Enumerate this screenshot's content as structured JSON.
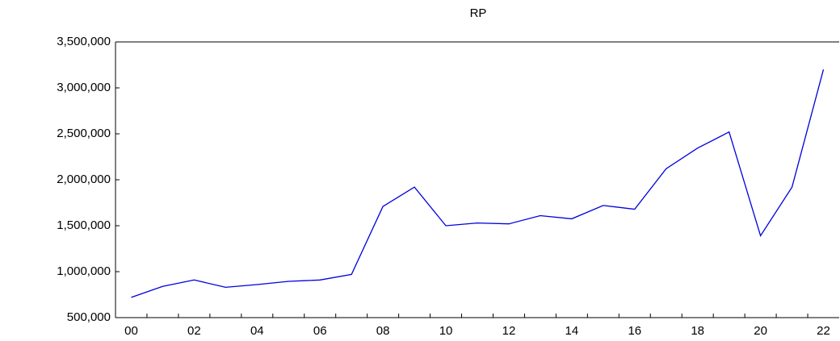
{
  "chart_data": {
    "type": "line",
    "title": "RP",
    "categories": [
      "00",
      null,
      "02",
      null,
      "04",
      null,
      "06",
      null,
      "08",
      null,
      "10",
      null,
      "12",
      null,
      "14",
      null,
      "16",
      null,
      "18",
      null,
      "20",
      null,
      "22"
    ],
    "series": [
      {
        "name": "RP",
        "color": "#0000dd",
        "values": [
          720000,
          840000,
          910000,
          830000,
          860000,
          895000,
          910000,
          970000,
          1710000,
          1920000,
          1500000,
          1530000,
          1520000,
          1610000,
          1575000,
          1720000,
          1680000,
          2120000,
          2345000,
          2520000,
          1390000,
          1920000,
          3200000
        ]
      }
    ],
    "ylim": [
      500000,
      3500000
    ],
    "yticks": [
      {
        "value": 500000,
        "label": "500,000"
      },
      {
        "value": 1000000,
        "label": "1,000,000"
      },
      {
        "value": 1500000,
        "label": "1,500,000"
      },
      {
        "value": 2000000,
        "label": "2,000,000"
      },
      {
        "value": 2500000,
        "label": "2,500,000"
      },
      {
        "value": 3000000,
        "label": "3,000,000"
      },
      {
        "value": 3500000,
        "label": "3,500,000"
      }
    ],
    "grid": false
  }
}
